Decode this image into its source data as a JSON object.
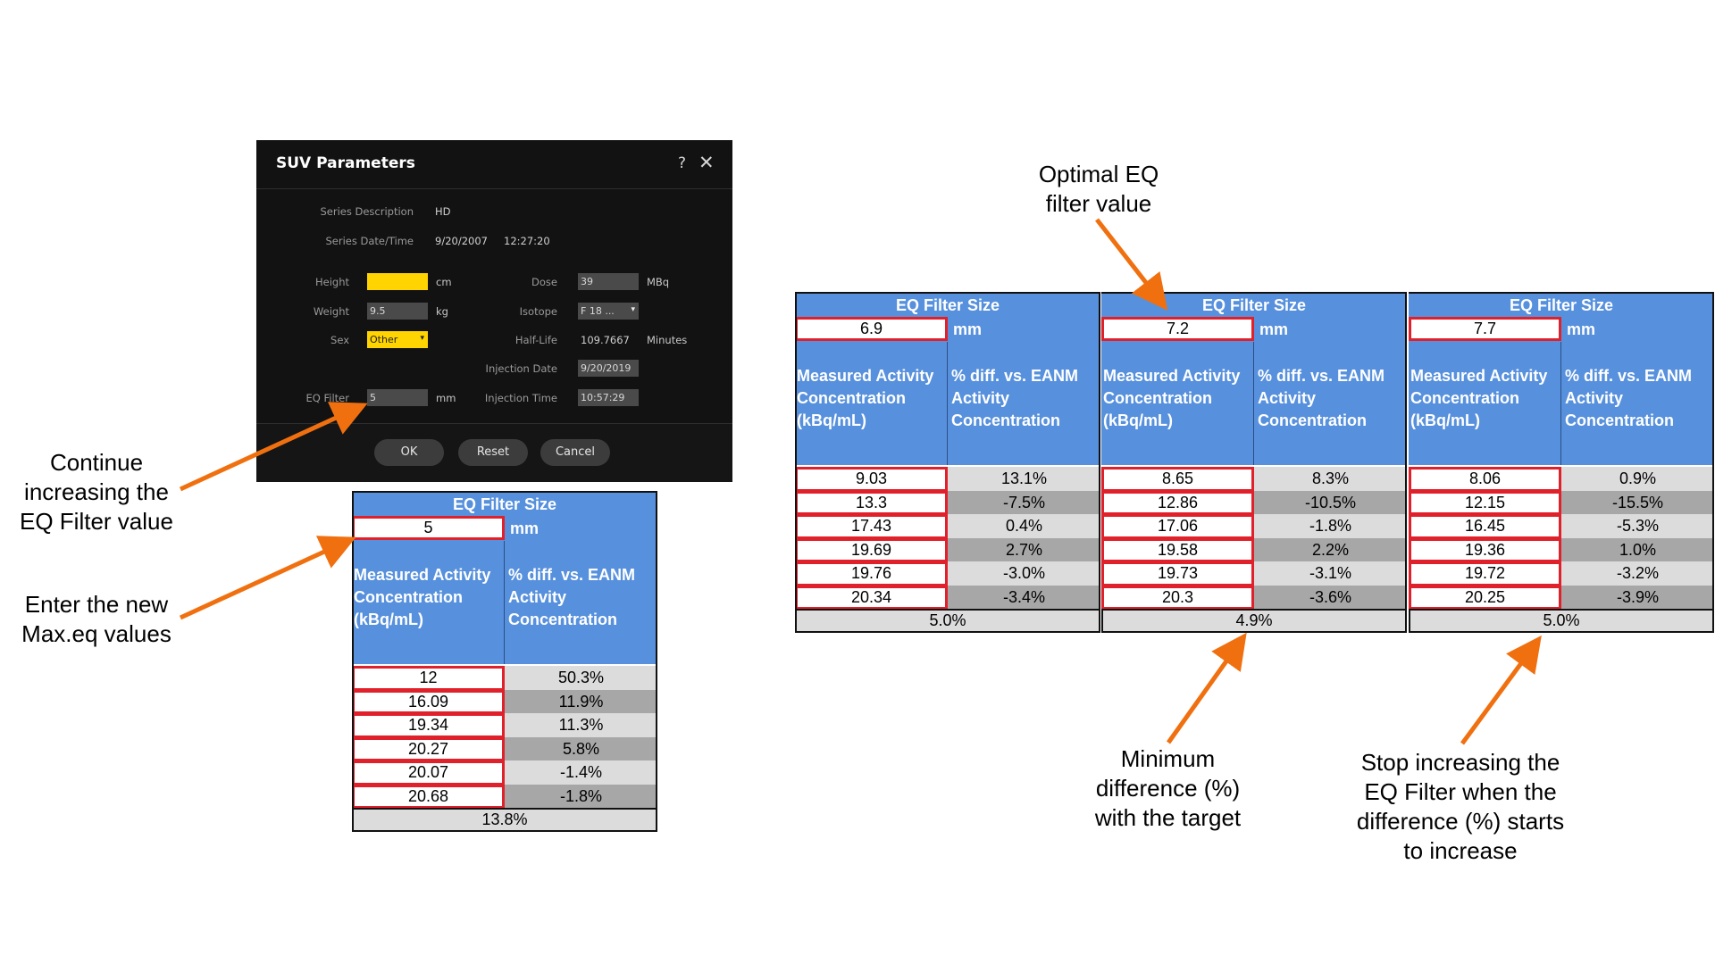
{
  "dialog": {
    "title": "SUV Parameters",
    "help_icon": "?",
    "close_icon": "✕",
    "series_description_label": "Series Description",
    "series_description_value": "HD",
    "series_datetime_label": "Series Date/Time",
    "series_date_value": "9/20/2007",
    "series_time_value": "12:27:20",
    "height_label": "Height",
    "height_value": "",
    "height_unit": "cm",
    "weight_label": "Weight",
    "weight_value": "9.5",
    "weight_unit": "kg",
    "sex_label": "Sex",
    "sex_value": "Other",
    "eq_filter_label": "EQ Filter",
    "eq_filter_value": "5",
    "eq_filter_unit": "mm",
    "dose_label": "Dose",
    "dose_value": "39",
    "dose_unit": "MBq",
    "isotope_label": "Isotope",
    "isotope_value": "F 18 ...",
    "half_life_label": "Half-Life",
    "half_life_value": "109.7667",
    "half_life_unit": "Minutes",
    "injection_date_label": "Injection Date",
    "injection_date_value": "9/20/2019",
    "injection_time_label": "Injection Time",
    "injection_time_value": "10:57:29",
    "ok_label": "OK",
    "reset_label": "Reset",
    "cancel_label": "Cancel",
    "highlight_color": "#ffd400"
  },
  "tables": [
    {
      "header": "EQ Filter Size",
      "filter_value": "5",
      "unit": "mm",
      "col1": [
        "Measured Activity",
        "Concentration",
        "(kBq/mL)"
      ],
      "col2": [
        "% diff. vs. EANM",
        "Activity",
        "Concentration"
      ],
      "rows": [
        {
          "measured": "12",
          "diff": "50.3%"
        },
        {
          "measured": "16.09",
          "diff": "11.9%"
        },
        {
          "measured": "19.34",
          "diff": "11.3%"
        },
        {
          "measured": "20.27",
          "diff": "5.8%"
        },
        {
          "measured": "20.07",
          "diff": "-1.4%"
        },
        {
          "measured": "20.68",
          "diff": "-1.8%"
        }
      ],
      "footer": "13.8%"
    },
    {
      "header": "EQ Filter Size",
      "filter_value": "6.9",
      "unit": "mm",
      "col1": [
        "Measured Activity",
        "Concentration",
        "(kBq/mL)"
      ],
      "col2": [
        "% diff. vs. EANM",
        "Activity",
        "Concentration"
      ],
      "rows": [
        {
          "measured": "9.03",
          "diff": "13.1%"
        },
        {
          "measured": "13.3",
          "diff": "-7.5%"
        },
        {
          "measured": "17.43",
          "diff": "0.4%"
        },
        {
          "measured": "19.69",
          "diff": "2.7%"
        },
        {
          "measured": "19.76",
          "diff": "-3.0%"
        },
        {
          "measured": "20.34",
          "diff": "-3.4%"
        }
      ],
      "footer": "5.0%"
    },
    {
      "header": "EQ Filter Size",
      "filter_value": "7.2",
      "unit": "mm",
      "col1": [
        "Measured Activity",
        "Concentration",
        "(kBq/mL)"
      ],
      "col2": [
        "% diff. vs. EANM",
        "Activity",
        "Concentration"
      ],
      "rows": [
        {
          "measured": "8.65",
          "diff": "8.3%"
        },
        {
          "measured": "12.86",
          "diff": "-10.5%"
        },
        {
          "measured": "17.06",
          "diff": "-1.8%"
        },
        {
          "measured": "19.58",
          "diff": "2.2%"
        },
        {
          "measured": "19.73",
          "diff": "-3.1%"
        },
        {
          "measured": "20.3",
          "diff": "-3.6%"
        }
      ],
      "footer": "4.9%"
    },
    {
      "header": "EQ Filter Size",
      "filter_value": "7.7",
      "unit": "mm",
      "col1": [
        "Measured Activity",
        "Concentration",
        "(kBq/mL)"
      ],
      "col2": [
        "% diff. vs. EANM",
        "Activity",
        "Concentration"
      ],
      "rows": [
        {
          "measured": "8.06",
          "diff": "0.9%"
        },
        {
          "measured": "12.15",
          "diff": "-15.5%"
        },
        {
          "measured": "16.45",
          "diff": "-5.3%"
        },
        {
          "measured": "19.36",
          "diff": "1.0%"
        },
        {
          "measured": "19.72",
          "diff": "-3.2%"
        },
        {
          "measured": "20.25",
          "diff": "-3.9%"
        }
      ],
      "footer": "5.0%"
    }
  ],
  "annotations": {
    "continue": [
      "Continue",
      "increasing the",
      "EQ Filter value"
    ],
    "enter": [
      "Enter the new",
      "Max.eq values"
    ],
    "optimal": [
      "Optimal EQ",
      "filter value"
    ],
    "minimum": [
      "Minimum",
      "difference (%)",
      "with the target"
    ],
    "stop": [
      "Stop increasing the",
      "EQ Filter when the",
      "difference (%) starts",
      "to increase"
    ],
    "arrow_color": "#f07010"
  }
}
